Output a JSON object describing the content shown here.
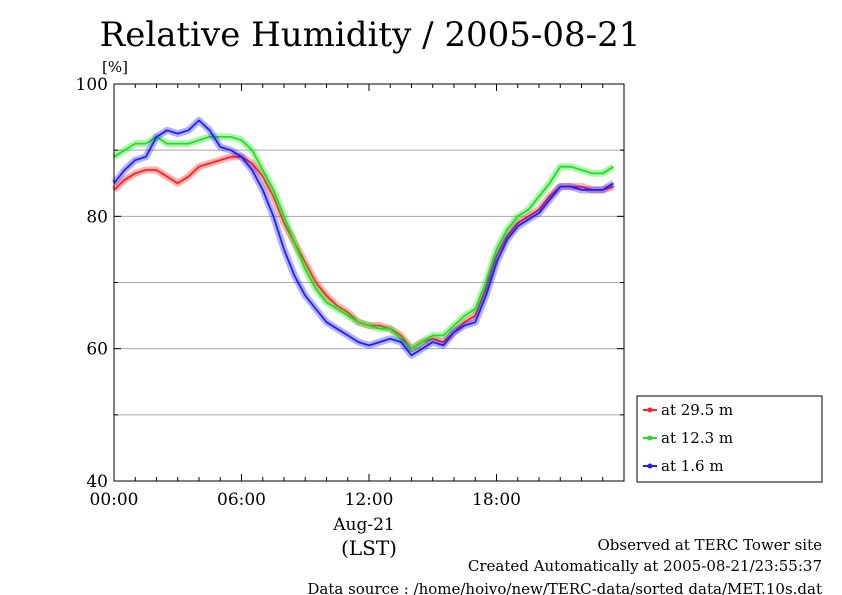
{
  "chart_data": {
    "type": "line",
    "title": "Relative Humidity / 2005-08-21",
    "ylabel_unit": "[%]",
    "xlabel": "Aug-21",
    "xlabel_unit": "(LST)",
    "xlim": [
      0,
      24
    ],
    "ylim": [
      40,
      100
    ],
    "x_ticks": [
      0,
      6,
      12,
      18
    ],
    "x_tick_labels": [
      "00:00",
      "06:00",
      "12:00",
      "18:00"
    ],
    "y_ticks": [
      40,
      60,
      80,
      100
    ],
    "y_tick_labels": [
      "40",
      "60",
      "80",
      "100"
    ],
    "grid": "horizontal every 10",
    "legend_position": "right, below plot",
    "series": [
      {
        "name": "at 29.5 m",
        "color": "#ff2020",
        "x": [
          0,
          0.5,
          1,
          1.5,
          2,
          2.5,
          3,
          3.5,
          4,
          4.5,
          5,
          5.5,
          6,
          6.5,
          7,
          7.5,
          8,
          8.5,
          9,
          9.5,
          10,
          10.5,
          11,
          11.5,
          12,
          12.5,
          13,
          13.5,
          14,
          14.5,
          15,
          15.5,
          16,
          16.5,
          17,
          17.5,
          18,
          18.5,
          19,
          19.5,
          20,
          20.5,
          21,
          21.5,
          22,
          22.5,
          23,
          23.5
        ],
        "y": [
          84,
          85.5,
          86.5,
          87,
          87,
          86,
          85,
          86,
          87.5,
          88,
          88.5,
          89,
          89,
          88,
          86,
          83,
          79,
          76,
          73,
          70,
          68,
          66.5,
          65.5,
          64,
          63.5,
          63.5,
          63,
          62,
          60,
          61,
          61.5,
          61,
          62.5,
          64,
          65,
          69,
          74,
          77,
          79,
          80,
          81,
          83,
          84.5,
          84.5,
          84.5,
          84,
          84,
          84.5
        ]
      },
      {
        "name": "at 12.3 m",
        "color": "#20e020",
        "x": [
          0,
          0.5,
          1,
          1.5,
          2,
          2.5,
          3,
          3.5,
          4,
          4.5,
          5,
          5.5,
          6,
          6.5,
          7,
          7.5,
          8,
          8.5,
          9,
          9.5,
          10,
          10.5,
          11,
          11.5,
          12,
          12.5,
          13,
          13.5,
          14,
          14.5,
          15,
          15.5,
          16,
          16.5,
          17,
          17.5,
          18,
          18.5,
          19,
          19.5,
          20,
          20.5,
          21,
          21.5,
          22,
          22.5,
          23,
          23.5
        ],
        "y": [
          89,
          90,
          91,
          91,
          92,
          91,
          91,
          91,
          91.5,
          92,
          92,
          92,
          91.5,
          90,
          87,
          84,
          80,
          76,
          72,
          69,
          67,
          66,
          65,
          64,
          63.5,
          63,
          63,
          61.5,
          60,
          61,
          62,
          62,
          63.5,
          65,
          66,
          70,
          75,
          78,
          80,
          81,
          83,
          85,
          87.5,
          87.5,
          87,
          86.5,
          86.5,
          87.5
        ]
      },
      {
        "name": "at 1.6 m",
        "color": "#2020ff",
        "x": [
          0,
          0.5,
          1,
          1.5,
          2,
          2.5,
          3,
          3.5,
          4,
          4.5,
          5,
          5.5,
          6,
          6.5,
          7,
          7.5,
          8,
          8.5,
          9,
          9.5,
          10,
          10.5,
          11,
          11.5,
          12,
          12.5,
          13,
          13.5,
          14,
          14.5,
          15,
          15.5,
          16,
          16.5,
          17,
          17.5,
          18,
          18.5,
          19,
          19.5,
          20,
          20.5,
          21,
          21.5,
          22,
          22.5,
          23,
          23.5
        ],
        "y": [
          85,
          87,
          88.5,
          89,
          92,
          93,
          92.5,
          93,
          94.5,
          93,
          90.5,
          90,
          89,
          87,
          84,
          80,
          75,
          71,
          68,
          66,
          64,
          63,
          62,
          61,
          60.5,
          61,
          61.5,
          61,
          59,
          60,
          61,
          60.5,
          62.5,
          63.5,
          64,
          68,
          73,
          76.5,
          78.5,
          79.5,
          80.5,
          82.5,
          84.5,
          84.5,
          84,
          84,
          84,
          85
        ]
      }
    ]
  },
  "footer": {
    "line1": "Observed at TERC Tower site",
    "line2": "Created Automatically at 2005-08-21/23:55:37",
    "line3": "Data source : /home/hoivo/new/TERC-data/sorted  data/MET.10s.dat"
  }
}
